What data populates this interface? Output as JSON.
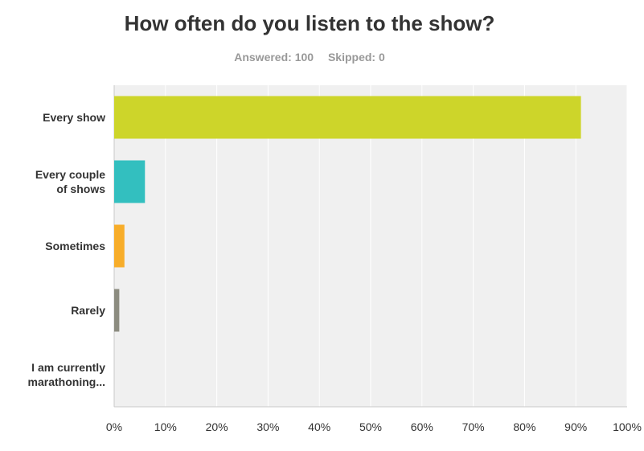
{
  "header": {
    "title": "How often do you listen to the show?",
    "answered_label": "Answered: 100",
    "skipped_label": "Skipped: 0"
  },
  "chart_data": {
    "type": "bar",
    "orientation": "horizontal",
    "title": "How often do you listen to the show?",
    "categories": [
      [
        "Every show"
      ],
      [
        "Every couple",
        "of shows"
      ],
      [
        "Sometimes"
      ],
      [
        "Rarely"
      ],
      [
        "I am currently",
        "marathoning..."
      ]
    ],
    "values": [
      91,
      6,
      2,
      1,
      0
    ],
    "colors": [
      "#cdd52a",
      "#33bfbf",
      "#f7ad2a",
      "#8c8c80",
      "#cccccc"
    ],
    "xlim": [
      0,
      100
    ],
    "x_ticks": [
      0,
      10,
      20,
      30,
      40,
      50,
      60,
      70,
      80,
      90,
      100
    ],
    "x_tick_labels": [
      "0%",
      "10%",
      "20%",
      "30%",
      "40%",
      "50%",
      "60%",
      "70%",
      "80%",
      "90%",
      "100%"
    ],
    "grid": true,
    "legend": "none",
    "plot_background": "#f0f0f0"
  }
}
